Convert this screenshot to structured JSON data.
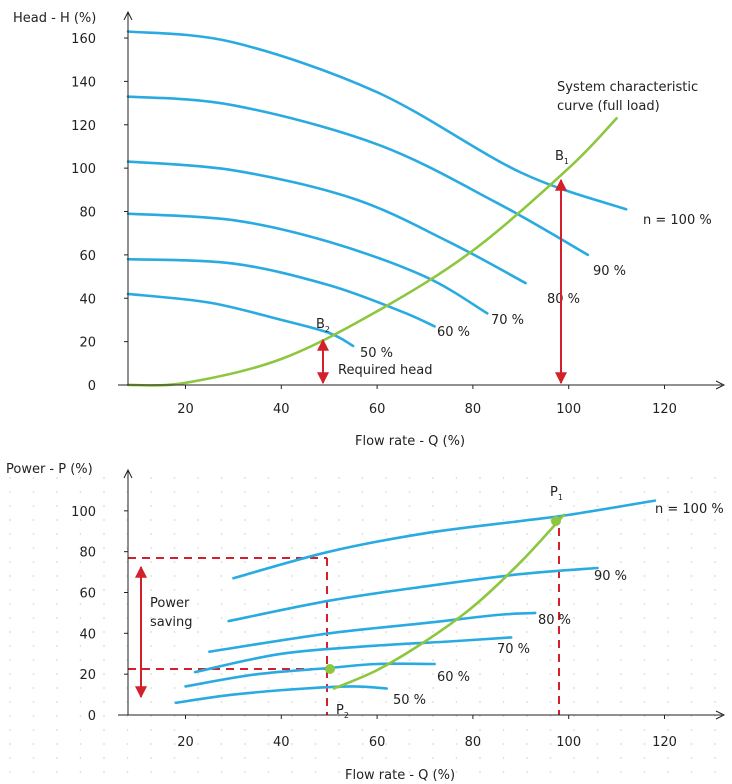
{
  "chart_data": [
    {
      "type": "line",
      "ylabel": "Head - H (%)",
      "xlabel": "Flow rate - Q (%)",
      "xlim": [
        8,
        132
      ],
      "ylim": [
        0,
        172
      ],
      "x_ticks": [
        "20",
        "40",
        "60",
        "80",
        "100",
        "120"
      ],
      "y_ticks": [
        "0",
        "20",
        "40",
        "60",
        "80",
        "100",
        "120",
        "140",
        "160"
      ],
      "grid": false,
      "series": [
        {
          "name": "n = 100 %",
          "color": "#29abe2",
          "x": [
            8,
            30,
            60,
            90,
            112
          ],
          "y": [
            163,
            158,
            135,
            98,
            81
          ]
        },
        {
          "name": "90 %",
          "color": "#29abe2",
          "x": [
            8,
            30,
            60,
            85,
            104
          ],
          "y": [
            133,
            129,
            111,
            84,
            60
          ]
        },
        {
          "name": "80 %",
          "color": "#29abe2",
          "x": [
            8,
            30,
            55,
            75,
            91
          ],
          "y": [
            103,
            99,
            86,
            66,
            47
          ]
        },
        {
          "name": "70 %",
          "color": "#29abe2",
          "x": [
            8,
            30,
            50,
            70,
            83
          ],
          "y": [
            79,
            76,
            66,
            50,
            33
          ]
        },
        {
          "name": "60 %",
          "color": "#29abe2",
          "x": [
            8,
            30,
            50,
            65,
            72
          ],
          "y": [
            58,
            56,
            46,
            34,
            27
          ]
        },
        {
          "name": "50 %",
          "color": "#29abe2",
          "x": [
            8,
            25,
            40,
            50,
            55
          ],
          "y": [
            42,
            38,
            30,
            24,
            18
          ]
        },
        {
          "name": "System characteristic curve (full load)",
          "color": "#8dc63f",
          "x": [
            8,
            20,
            40,
            60,
            80,
            100,
            110
          ],
          "y": [
            0,
            1,
            12,
            34,
            62,
            100,
            123
          ]
        }
      ],
      "annotations": {
        "b1": "B",
        "b1_sub": "1",
        "b2": "B",
        "b2_sub": "2",
        "required_head": "Required head",
        "system_curve": [
          "System characteristic",
          "curve (full load)"
        ]
      }
    },
    {
      "type": "line",
      "ylabel": "Power - P (%)",
      "xlabel": "Flow rate - Q (%)",
      "xlim": [
        8,
        132
      ],
      "ylim": [
        0,
        120
      ],
      "x_ticks": [
        "20",
        "40",
        "60",
        "80",
        "100",
        "120"
      ],
      "y_ticks": [
        "0",
        "20",
        "40",
        "60",
        "80",
        "100"
      ],
      "grid": true,
      "series": [
        {
          "name": "n = 100 %",
          "color": "#29abe2",
          "x": [
            30,
            50,
            70,
            90,
            100,
            118
          ],
          "y": [
            67,
            80,
            89,
            95,
            98,
            105
          ]
        },
        {
          "name": "90 %",
          "color": "#29abe2",
          "x": [
            29,
            50,
            70,
            90,
            106
          ],
          "y": [
            46,
            56,
            63,
            69,
            72
          ]
        },
        {
          "name": "80 %",
          "color": "#29abe2",
          "x": [
            25,
            50,
            70,
            85,
            93
          ],
          "y": [
            31,
            40,
            45,
            49,
            50
          ]
        },
        {
          "name": "70 %",
          "color": "#29abe2",
          "x": [
            22,
            40,
            60,
            75,
            88
          ],
          "y": [
            21,
            30,
            34,
            36,
            38
          ]
        },
        {
          "name": "60 %",
          "color": "#29abe2",
          "x": [
            20,
            35,
            50,
            60,
            72
          ],
          "y": [
            14,
            20,
            23,
            25,
            25
          ]
        },
        {
          "name": "50 %",
          "color": "#29abe2",
          "x": [
            18,
            30,
            45,
            55,
            62
          ],
          "y": [
            6,
            10,
            13,
            14,
            13
          ]
        },
        {
          "name": "System characteristic curve (full load)",
          "color": "#8dc63f",
          "x": [
            51,
            60,
            70,
            80,
            90,
            99
          ],
          "y": [
            13,
            22,
            36,
            53,
            75,
            98
          ]
        }
      ],
      "annotations": {
        "p1": "P",
        "p1_sub": "1",
        "p2": "P",
        "p2_sub": "2",
        "power_saving": [
          "Power",
          "saving"
        ]
      }
    }
  ],
  "colors": {
    "pump_curve": "#29abe2",
    "system_curve": "#8dc63f",
    "marker": "#d4202a",
    "axis": "#222222",
    "grid_dot": "#d9d9d9"
  }
}
